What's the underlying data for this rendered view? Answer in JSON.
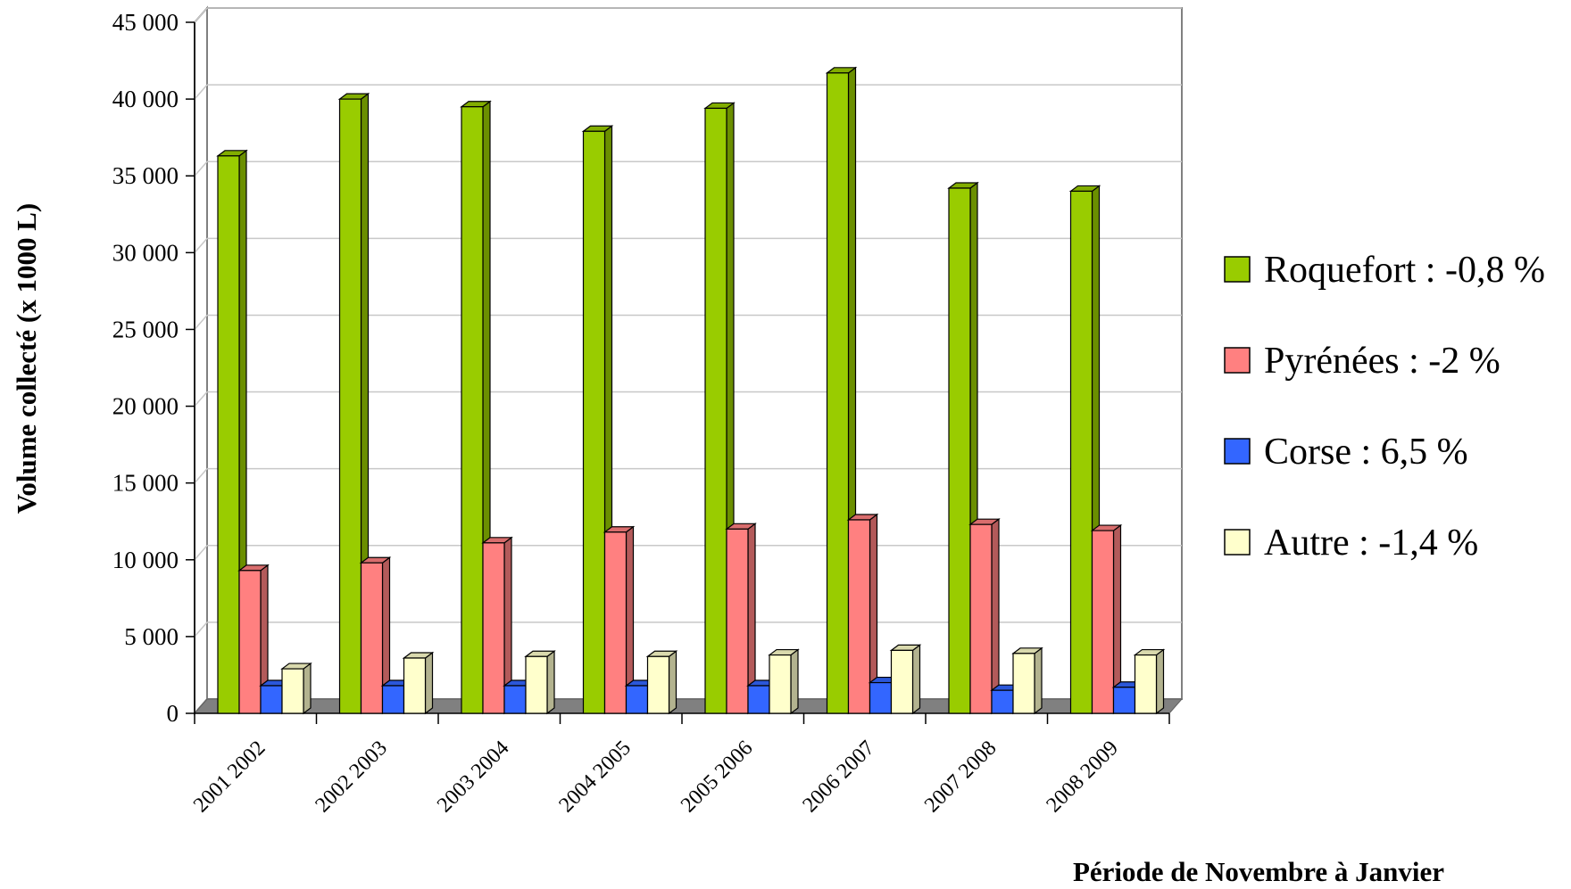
{
  "chart_data": {
    "type": "bar",
    "style": "3d-clustered-column",
    "xlabel": "Période de Novembre à Janvier",
    "ylabel": "Volume collecté (x 1000 L)",
    "ylim": [
      0,
      45000
    ],
    "yticks": [
      0,
      5000,
      10000,
      15000,
      20000,
      25000,
      30000,
      35000,
      40000,
      45000
    ],
    "ytick_labels": [
      "0",
      "5 000",
      "10 000",
      "15 000",
      "20 000",
      "25 000",
      "30 000",
      "35 000",
      "40 000",
      "45 000"
    ],
    "grid": "horizontal",
    "legend_position": "right",
    "categories": [
      "2001 2002",
      "2002 2003",
      "2003 2004",
      "2004 2005",
      "2005 2006",
      "2006 2007",
      "2007 2008",
      "2008 2009"
    ],
    "series": [
      {
        "name": "Roquefort : -0,8 %",
        "color": "#99cc00",
        "values": [
          36300,
          40000,
          39500,
          37900,
          39400,
          41700,
          34200,
          34000
        ]
      },
      {
        "name": "Pyrénées : -2 %",
        "color": "#ff8080",
        "values": [
          9300,
          9800,
          11100,
          11800,
          12000,
          12600,
          12300,
          11900
        ]
      },
      {
        "name": "Corse : 6,5 %",
        "color": "#3366ff",
        "values": [
          1800,
          1800,
          1800,
          1800,
          1800,
          2000,
          1500,
          1700
        ]
      },
      {
        "name": "Autre : -1,4 %",
        "color": "#ffffcc",
        "values": [
          2900,
          3600,
          3700,
          3700,
          3800,
          4100,
          3900,
          3800
        ]
      }
    ]
  }
}
